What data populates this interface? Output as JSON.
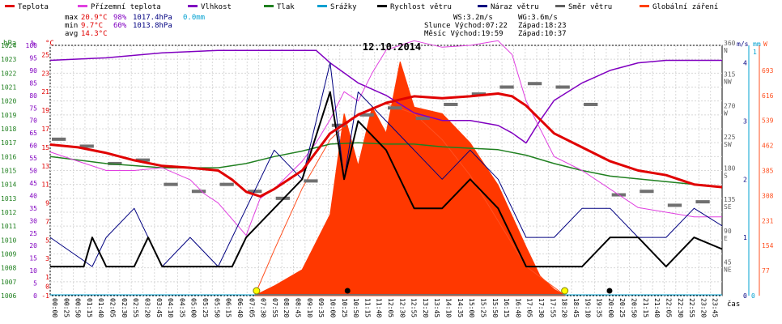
{
  "chart_data": {
    "type": "line",
    "title": "12.10.2014",
    "legend": [
      {
        "name": "Teplota",
        "color": "#e00000"
      },
      {
        "name": "Přízemní teplota",
        "color": "#e040e0"
      },
      {
        "name": "Vlhkost",
        "color": "#8000c0"
      },
      {
        "name": "Tlak",
        "color": "#208020"
      },
      {
        "name": "Srážky",
        "color": "#00a0d0"
      },
      {
        "name": "Rychlost větru",
        "color": "#000000"
      },
      {
        "name": "Náraz větru",
        "color": "#000080"
      },
      {
        "name": "Směr větru",
        "color": "#606060"
      },
      {
        "name": "Globální záření",
        "color": "#ff4000"
      }
    ],
    "stats": {
      "rows": [
        {
          "label": "max",
          "temp": "20.9°C",
          "hum": "98%",
          "press": "1017.4hPa",
          "rain": "0.0mm"
        },
        {
          "label": "min",
          "temp": "9.7°C",
          "hum": "60%",
          "press": "1013.8hPa",
          "rain": ""
        },
        {
          "label": "avg",
          "temp": "14.3°C",
          "hum": "",
          "press": "",
          "rain": ""
        }
      ],
      "wind": "WS:3.2m/s",
      "gust": "WG:3.6m/s",
      "sun": "Slunce Východ:07:22",
      "sun_set": "Západ:18:23",
      "moon": "Měsíc Východ:19:59",
      "moon_set": "Západ:10:37"
    },
    "axes": {
      "hpa_label": "hPa",
      "hpa_ticks": [
        "1006",
        "1007",
        "1008",
        "1009",
        "1010",
        "1011",
        "1012",
        "1013",
        "1014",
        "1015",
        "1016",
        "1017",
        "1018",
        "1019",
        "1020",
        "1021",
        "1022",
        "1023",
        "1024"
      ],
      "pct_label": "%",
      "pct_ticks": [
        "0",
        "5",
        "10",
        "15",
        "20",
        "25",
        "30",
        "35",
        "40",
        "45",
        "50",
        "55",
        "60",
        "65",
        "70",
        "75",
        "80",
        "85",
        "90",
        "95",
        "100"
      ],
      "temp_label": "°C",
      "temp_ticks": [
        "-1",
        "1",
        "3",
        "5",
        "7",
        "9",
        "11",
        "13",
        "15",
        "17",
        "19",
        "21",
        "23",
        "25"
      ],
      "temp_extra": [
        "0"
      ],
      "dir_ticks": [
        {
          "v": "45",
          "d": "NE"
        },
        {
          "v": "90",
          "d": "E"
        },
        {
          "v": "135",
          "d": "SE"
        },
        {
          "v": "180",
          "d": "S"
        },
        {
          "v": "225",
          "d": "SW"
        },
        {
          "v": "270",
          "d": "W"
        },
        {
          "v": "315",
          "d": "NW"
        },
        {
          "v": "360",
          "d": "N"
        }
      ],
      "ms_label": "m/s",
      "ms_ticks": [
        "0",
        "1",
        "2",
        "3",
        "4"
      ],
      "mm_label": "mm",
      "mm_top": "1",
      "mm_bottom": "0",
      "w_label": "W",
      "w_ticks": [
        "77",
        "154",
        "231",
        "308",
        "385",
        "462",
        "539",
        "616",
        "693"
      ],
      "time_label": "čas",
      "time_ticks": [
        "00:00",
        "00:25",
        "00:50",
        "01:15",
        "01:40",
        "02:05",
        "02:30",
        "02:55",
        "03:20",
        "03:45",
        "04:10",
        "04:35",
        "05:00",
        "05:25",
        "05:50",
        "06:15",
        "06:40",
        "07:05",
        "07:30",
        "07:55",
        "08:20",
        "08:45",
        "09:10",
        "09:35",
        "10:00",
        "10:25",
        "10:50",
        "11:15",
        "11:40",
        "12:05",
        "12:30",
        "12:55",
        "13:20",
        "13:45",
        "14:10",
        "14:35",
        "15:00",
        "15:25",
        "15:50",
        "16:15",
        "16:40",
        "17:05",
        "17:30",
        "17:55",
        "18:20",
        "18:45",
        "19:10",
        "19:35",
        "20:00",
        "20:25",
        "20:50",
        "21:15",
        "21:40",
        "22:05",
        "22:30",
        "22:55",
        "23:20",
        "23:45"
      ]
    },
    "series": {
      "temperature_c": [
        [
          0,
          15.3
        ],
        [
          1,
          15.0
        ],
        [
          2,
          14.4
        ],
        [
          3,
          13.6
        ],
        [
          4,
          13.0
        ],
        [
          5,
          12.8
        ],
        [
          6,
          12.5
        ],
        [
          6.5,
          11.5
        ],
        [
          7,
          10.2
        ],
        [
          7.5,
          9.7
        ],
        [
          8,
          10.5
        ],
        [
          9,
          12.5
        ],
        [
          10,
          16.5
        ],
        [
          10.5,
          17.5
        ],
        [
          11,
          18.5
        ],
        [
          12,
          19.8
        ],
        [
          13,
          20.5
        ],
        [
          14,
          20.3
        ],
        [
          15,
          20.5
        ],
        [
          16,
          20.8
        ],
        [
          16.5,
          20.5
        ],
        [
          17,
          19.5
        ],
        [
          18,
          16.5
        ],
        [
          19,
          15.0
        ],
        [
          20,
          13.5
        ],
        [
          21,
          12.5
        ],
        [
          22,
          12.0
        ],
        [
          23,
          11.0
        ],
        [
          24,
          10.7
        ]
      ],
      "ground_temp_c": [
        [
          0,
          14.5
        ],
        [
          1,
          13.5
        ],
        [
          2,
          12.5
        ],
        [
          3,
          12.5
        ],
        [
          4,
          12.8
        ],
        [
          5,
          11.5
        ],
        [
          5.5,
          10.0
        ],
        [
          6,
          9.0
        ],
        [
          7,
          5.5
        ],
        [
          7.5,
          9.5
        ],
        [
          8,
          10.5
        ],
        [
          9,
          13.5
        ],
        [
          9.5,
          15.5
        ],
        [
          10,
          18.0
        ],
        [
          10.5,
          21.0
        ],
        [
          11,
          20.0
        ],
        [
          11.5,
          23.0
        ],
        [
          12,
          25.5
        ],
        [
          13,
          26.5
        ],
        [
          14,
          25.8
        ],
        [
          15,
          26.0
        ],
        [
          16,
          26.5
        ],
        [
          16.5,
          25.0
        ],
        [
          17,
          20.0
        ],
        [
          18,
          14.0
        ],
        [
          19,
          12.5
        ],
        [
          20,
          10.5
        ],
        [
          21,
          8.5
        ],
        [
          22,
          8.0
        ],
        [
          23,
          7.5
        ],
        [
          24,
          7.5
        ]
      ],
      "humidity_pct": [
        [
          0,
          94
        ],
        [
          2,
          95
        ],
        [
          4,
          97
        ],
        [
          6,
          98
        ],
        [
          8,
          98
        ],
        [
          9.5,
          98
        ],
        [
          10,
          93
        ],
        [
          11,
          85
        ],
        [
          12,
          80
        ],
        [
          13,
          73
        ],
        [
          14,
          70
        ],
        [
          15,
          70
        ],
        [
          16,
          68
        ],
        [
          16.5,
          65
        ],
        [
          17,
          61
        ],
        [
          17.5,
          70
        ],
        [
          18,
          78
        ],
        [
          19,
          85
        ],
        [
          20,
          90
        ],
        [
          21,
          93
        ],
        [
          22,
          94
        ],
        [
          24,
          94
        ]
      ],
      "pressure_hpa": [
        [
          0,
          1016.0
        ],
        [
          2,
          1015.5
        ],
        [
          4,
          1015.2
        ],
        [
          6,
          1015.2
        ],
        [
          7,
          1015.5
        ],
        [
          8,
          1016.0
        ],
        [
          9,
          1016.4
        ],
        [
          10,
          1016.9
        ],
        [
          11,
          1017.0
        ],
        [
          12,
          1016.9
        ],
        [
          13,
          1016.9
        ],
        [
          14,
          1016.7
        ],
        [
          16,
          1016.5
        ],
        [
          17,
          1016.1
        ],
        [
          18,
          1015.5
        ],
        [
          19,
          1015.0
        ],
        [
          20,
          1014.6
        ],
        [
          22,
          1014.2
        ],
        [
          24,
          1013.8
        ]
      ],
      "rain_mm": [
        [
          0,
          0
        ],
        [
          24,
          0
        ]
      ],
      "wind_speed_ms": [
        [
          0,
          0.5
        ],
        [
          1.2,
          0.5
        ],
        [
          1.5,
          1.0
        ],
        [
          2,
          0.5
        ],
        [
          3,
          0.5
        ],
        [
          3.5,
          1.0
        ],
        [
          4,
          0.5
        ],
        [
          5,
          0.5
        ],
        [
          6.5,
          0.5
        ],
        [
          7,
          1.0
        ],
        [
          8,
          1.5
        ],
        [
          9,
          2.0
        ],
        [
          10,
          3.5
        ],
        [
          10.5,
          2.0
        ],
        [
          11,
          3.0
        ],
        [
          12,
          2.5
        ],
        [
          13,
          1.5
        ],
        [
          14,
          1.5
        ],
        [
          15,
          2.0
        ],
        [
          16,
          1.5
        ],
        [
          17,
          0.5
        ],
        [
          18,
          0.5
        ],
        [
          19,
          0.5
        ],
        [
          20,
          1.0
        ],
        [
          21,
          1.0
        ],
        [
          22,
          0.5
        ],
        [
          23,
          1.0
        ],
        [
          24,
          0.8
        ]
      ],
      "wind_gust_ms": [
        [
          0,
          1.0
        ],
        [
          1.5,
          0.5
        ],
        [
          2,
          1.0
        ],
        [
          3,
          1.5
        ],
        [
          4,
          0.5
        ],
        [
          5,
          1.0
        ],
        [
          6,
          0.5
        ],
        [
          7,
          1.5
        ],
        [
          8,
          2.5
        ],
        [
          9,
          2.0
        ],
        [
          10,
          4.0
        ],
        [
          10.5,
          2.0
        ],
        [
          11,
          3.5
        ],
        [
          12,
          3.0
        ],
        [
          13,
          2.5
        ],
        [
          14,
          2.0
        ],
        [
          15,
          2.5
        ],
        [
          16,
          2.0
        ],
        [
          17,
          1.0
        ],
        [
          18,
          1.0
        ],
        [
          19,
          1.5
        ],
        [
          20,
          1.5
        ],
        [
          21,
          1.0
        ],
        [
          22,
          1.0
        ],
        [
          23,
          1.5
        ],
        [
          24,
          1.2
        ]
      ],
      "wind_dir_deg": [
        [
          0,
          225
        ],
        [
          1,
          215
        ],
        [
          2,
          190
        ],
        [
          3,
          195
        ],
        [
          4,
          160
        ],
        [
          5,
          150
        ],
        [
          6,
          160
        ],
        [
          7,
          150
        ],
        [
          8,
          140
        ],
        [
          9,
          165
        ],
        [
          10,
          245
        ],
        [
          11,
          260
        ],
        [
          12,
          270
        ],
        [
          13,
          255
        ],
        [
          14,
          275
        ],
        [
          15,
          290
        ],
        [
          16,
          300
        ],
        [
          17,
          305
        ],
        [
          18,
          300
        ],
        [
          19,
          275
        ],
        [
          20,
          145
        ],
        [
          21,
          150
        ],
        [
          22,
          130
        ],
        [
          23,
          135
        ],
        [
          24,
          140
        ]
      ],
      "solar_w": [
        [
          7.3,
          0
        ],
        [
          8,
          30
        ],
        [
          9,
          80
        ],
        [
          10,
          250
        ],
        [
          10.5,
          560
        ],
        [
          11,
          400
        ],
        [
          11.5,
          580
        ],
        [
          12,
          500
        ],
        [
          12.5,
          720
        ],
        [
          13,
          580
        ],
        [
          14,
          560
        ],
        [
          15,
          470
        ],
        [
          16,
          340
        ],
        [
          17,
          150
        ],
        [
          17.5,
          60
        ],
        [
          18,
          20
        ],
        [
          18.4,
          0
        ]
      ],
      "solar_theoretical_w": [
        [
          7.3,
          0
        ],
        [
          8,
          140
        ],
        [
          9,
          330
        ],
        [
          10,
          480
        ],
        [
          11,
          560
        ],
        [
          12,
          590
        ],
        [
          13,
          560
        ],
        [
          14,
          480
        ],
        [
          15,
          370
        ],
        [
          16,
          230
        ],
        [
          17,
          90
        ],
        [
          18.4,
          0
        ]
      ]
    },
    "markers": {
      "sunrise": 7.37,
      "sunset": 18.38,
      "moonrise": 19.98,
      "moonset": 10.62
    },
    "ranges": {
      "hpa": [
        1006,
        1024
      ],
      "pct": [
        0,
        100
      ],
      "temp": [
        -1,
        26
      ],
      "dir": [
        0,
        360
      ],
      "ms": [
        0,
        4.3
      ],
      "w": [
        0,
        770
      ],
      "x": [
        0,
        24
      ]
    }
  }
}
